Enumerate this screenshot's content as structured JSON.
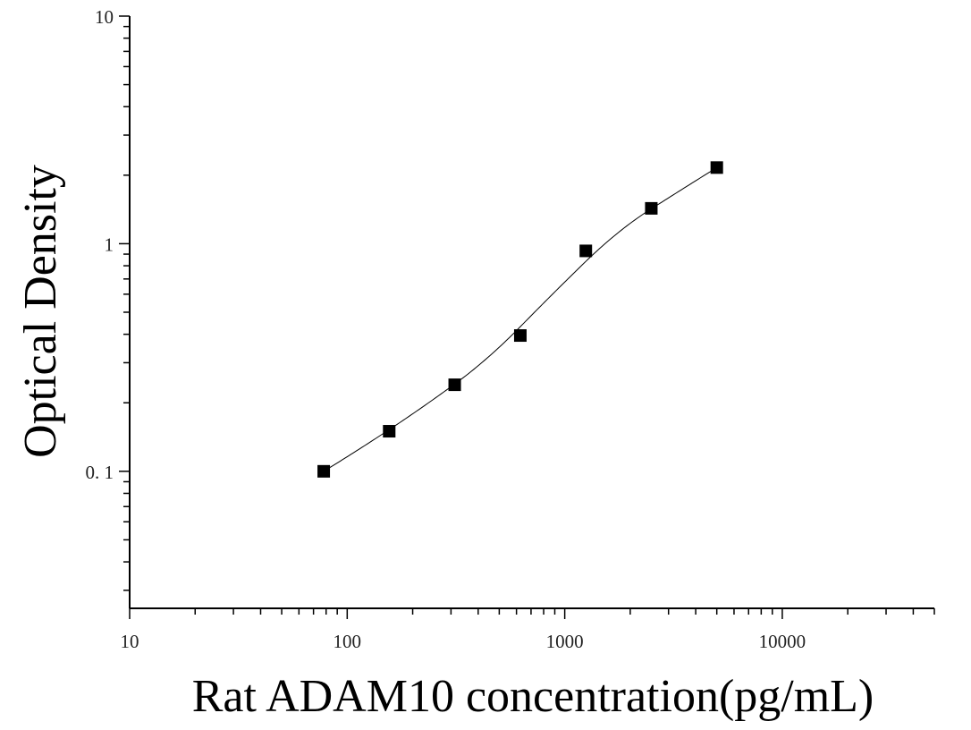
{
  "chart_data": {
    "type": "scatter",
    "title": "",
    "xlabel": "Rat ADAM10 concentration(pg/mL)",
    "ylabel": "Optical Density",
    "x_scale": "log",
    "y_scale": "log",
    "xlim": [
      10,
      50000
    ],
    "ylim": [
      0.025,
      10
    ],
    "x_ticks": [
      {
        "value": 10,
        "label": "10"
      },
      {
        "value": 100,
        "label": "100"
      },
      {
        "value": 1000,
        "label": "1000"
      },
      {
        "value": 10000,
        "label": "10000"
      }
    ],
    "y_ticks": [
      {
        "value": 0.1,
        "label": "0. 1"
      },
      {
        "value": 1,
        "label": "1"
      },
      {
        "value": 10,
        "label": "10"
      }
    ],
    "grid": false,
    "legend": "none",
    "series": [
      {
        "marker": "square",
        "color": "#000000",
        "x": [
          78,
          156,
          312,
          625,
          1250,
          2500,
          5000
        ],
        "y": [
          0.1,
          0.15,
          0.24,
          0.395,
          0.93,
          1.43,
          2.16
        ]
      }
    ],
    "fit_curve": {
      "type": "4-parameter logistic",
      "x_range": [
        78,
        5000
      ],
      "color": "#000000"
    }
  }
}
